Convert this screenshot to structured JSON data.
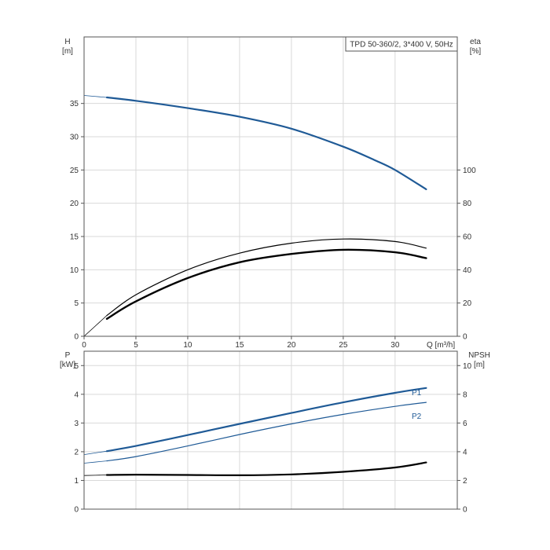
{
  "chart_data": [
    {
      "type": "line",
      "title": "TPD 50-360/2, 3*400 V, 50Hz",
      "xlabel": "Q [m³/h]",
      "ylabel_left": "H",
      "ylabel_left_unit": "[m]",
      "ylabel_right": "eta",
      "ylabel_right_unit": "[%]",
      "xlim": [
        0,
        36
      ],
      "ylim_left": [
        0,
        45
      ],
      "ylim_right": [
        0,
        180
      ],
      "x_ticks": [
        0,
        5,
        10,
        15,
        20,
        25,
        30
      ],
      "y_ticks_left": [
        0,
        5,
        10,
        15,
        20,
        25,
        30,
        35
      ],
      "y_ticks_right": [
        0,
        20,
        40,
        60,
        80,
        100
      ],
      "grid": true,
      "series": [
        {
          "axis": "left",
          "color": "#1f5a96",
          "width": 2.2,
          "x": [
            2.2,
            5,
            10,
            15,
            20,
            25,
            28,
            30,
            33
          ],
          "y": [
            35.9,
            35.4,
            34.3,
            33.0,
            31.2,
            28.5,
            26.5,
            25.0,
            22.1
          ],
          "extension": {
            "x": [
              0,
              2.2
            ],
            "y": [
              36.2,
              35.9
            ]
          }
        },
        {
          "axis": "right",
          "color": "#000000",
          "width": 1.2,
          "x": [
            2.2,
            5,
            10,
            15,
            20,
            25,
            30,
            33
          ],
          "y": [
            12.5,
            25,
            40,
            50,
            56,
            58.5,
            57,
            53
          ],
          "extension": {
            "x": [
              0,
              2.2
            ],
            "y": [
              0,
              12.5
            ]
          }
        },
        {
          "axis": "right",
          "color": "#000000",
          "width": 2.4,
          "x": [
            2.2,
            5,
            10,
            15,
            20,
            25,
            30,
            33
          ],
          "y": [
            10.5,
            21,
            35,
            44.5,
            49.5,
            52,
            50.5,
            47
          ]
        }
      ]
    },
    {
      "type": "line",
      "ylabel_left": "P",
      "ylabel_left_unit": "[kW]",
      "ylabel_right": "NPSH",
      "ylabel_right_unit": "[m]",
      "xlim": [
        0,
        36
      ],
      "ylim_left": [
        0,
        5.5
      ],
      "ylim_right": [
        0,
        11
      ],
      "y_ticks_left": [
        0,
        1,
        2,
        3,
        4,
        5
      ],
      "y_ticks_right": [
        0,
        2,
        4,
        6,
        8,
        10
      ],
      "grid": true,
      "series": [
        {
          "name": "P1",
          "axis": "left",
          "color": "#1f5a96",
          "width": 2.2,
          "x": [
            2.2,
            5,
            10,
            15,
            20,
            25,
            30,
            33
          ],
          "y": [
            2.02,
            2.2,
            2.58,
            2.97,
            3.35,
            3.72,
            4.05,
            4.22
          ],
          "extension": {
            "x": [
              0,
              2.2
            ],
            "y": [
              1.9,
              2.02
            ]
          }
        },
        {
          "name": "P2",
          "axis": "left",
          "color": "#1f5a96",
          "width": 1.2,
          "x": [
            2.2,
            5,
            10,
            15,
            20,
            25,
            30,
            33
          ],
          "y": [
            1.68,
            1.83,
            2.2,
            2.6,
            2.97,
            3.3,
            3.58,
            3.72
          ],
          "extension": {
            "x": [
              0,
              2.2
            ],
            "y": [
              1.6,
              1.68
            ]
          }
        },
        {
          "axis": "right",
          "color": "#000000",
          "width": 2.2,
          "x": [
            2.2,
            5,
            10,
            15,
            20,
            25,
            30,
            33
          ],
          "y": [
            2.38,
            2.4,
            2.38,
            2.36,
            2.42,
            2.6,
            2.9,
            3.25
          ],
          "extension": {
            "x": [
              0,
              2.2
            ],
            "y": [
              2.34,
              2.38
            ]
          }
        }
      ]
    }
  ]
}
